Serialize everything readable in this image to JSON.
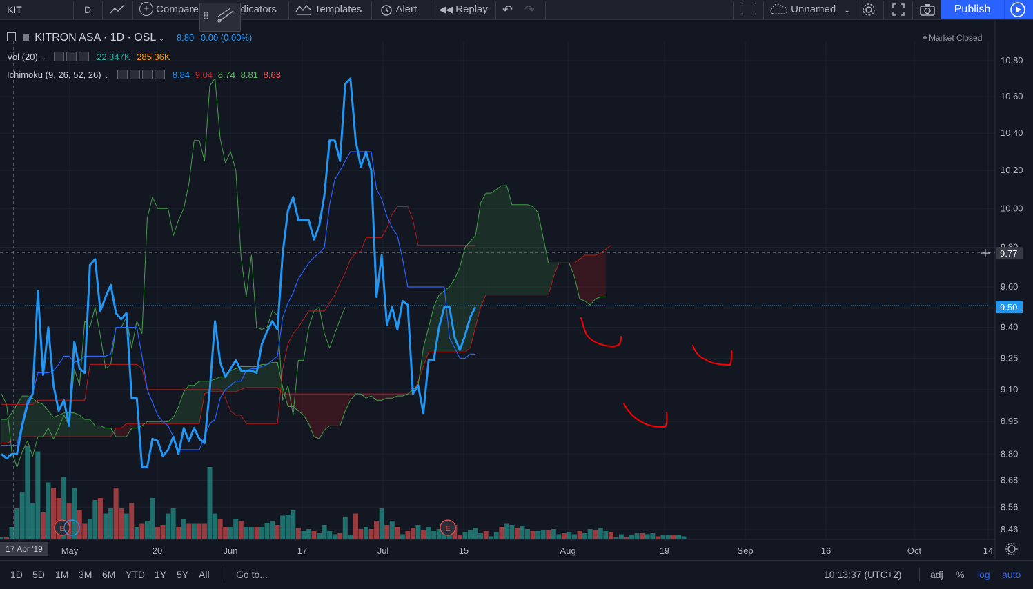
{
  "toolbar": {
    "symbol": "KIT",
    "interval": "D",
    "compare": "Compare",
    "indicators": "Indicators",
    "templates": "Templates",
    "alert": "Alert",
    "replay": "Replay",
    "layout_name": "Unnamed",
    "publish": "Publish"
  },
  "legend": {
    "title": "KITRON ASA · 1D · OSL",
    "price": "8.80",
    "change": "0.00 (0.00%)",
    "vol_label": "Vol (20)",
    "vol_value_1": "22.347K",
    "vol_value_2": "285.36K",
    "ichimoku_label": "Ichimoku (9, 26, 52, 26)",
    "ichi_values": [
      "8.84",
      "9.04",
      "8.74",
      "8.81",
      "8.63"
    ],
    "market_status": "Market Closed"
  },
  "crosshair_date": "17 Apr '19",
  "bottom": {
    "ranges": [
      "1D",
      "5D",
      "1M",
      "3M",
      "6M",
      "YTD",
      "1Y",
      "5Y",
      "All"
    ],
    "goto": "Go to...",
    "time": "10:13:37 (UTC+2)",
    "adj": "adj",
    "percent": "%",
    "log": "log",
    "auto": "auto"
  },
  "colors": {
    "background": "#131722",
    "price_line": "#2196f3",
    "tenkan": "#2962ff",
    "kijun": "#b71c1c",
    "chikou": "#43a047",
    "span_a": "#43a047",
    "span_b": "#b71c1c",
    "vol_up": "#26a69a",
    "vol_down": "#ef5350",
    "annotation": "#ff0000"
  },
  "chart_data": {
    "type": "line",
    "title": "KITRON ASA · 1D · OSL",
    "price_axis": {
      "ticks": [
        "10.80",
        "10.60",
        "10.40",
        "10.20",
        "10.00",
        "9.80",
        "9.60",
        "9.40",
        "9.25",
        "9.10",
        "8.95",
        "8.80",
        "8.68",
        "8.56",
        "8.46"
      ],
      "scale": "log",
      "ylim": [
        8.42,
        10.9
      ],
      "labels": [
        {
          "value": 9.77,
          "text": "9.77"
        },
        {
          "value": 9.5,
          "text": "9.50"
        }
      ]
    },
    "time_axis": {
      "ticks": [
        "May",
        "20",
        "Jun",
        "17",
        "Jul",
        "15",
        "Aug",
        "19",
        "Sep",
        "16",
        "Oct",
        "14"
      ],
      "first_index_label": "17 Apr '19"
    },
    "series": [
      {
        "name": "KITRON ASA",
        "values": [
          8.8,
          8.78,
          8.8,
          8.8,
          8.93,
          9.03,
          9.08,
          9.58,
          9.17,
          9.4,
          9.12,
          9.0,
          9.05,
          8.93,
          9.33,
          9.2,
          9.18,
          9.71,
          9.74,
          9.48,
          9.55,
          9.61,
          9.47,
          9.44,
          9.47,
          9.06,
          9.06,
          8.74,
          8.74,
          8.87,
          8.86,
          8.79,
          8.82,
          8.88,
          8.8,
          8.92,
          8.86,
          8.92,
          8.87,
          8.85,
          9.1,
          9.43,
          9.23,
          9.16,
          9.2,
          9.24,
          9.19,
          9.19,
          9.19,
          9.18,
          9.32,
          9.38,
          9.43,
          9.39,
          9.77,
          9.99,
          10.06,
          9.94,
          9.94,
          9.94,
          9.84,
          9.91,
          10.07,
          10.36,
          10.36,
          10.25,
          10.67,
          10.7,
          10.36,
          10.22,
          10.3,
          10.2,
          9.55,
          9.76,
          9.41,
          9.5,
          9.39,
          9.53,
          9.51,
          9.08,
          9.12,
          8.99,
          9.24,
          9.24,
          9.4,
          9.5,
          9.5,
          9.35,
          9.29,
          9.36,
          9.45,
          9.5
        ]
      },
      {
        "name": "Ichimoku Tenkan",
        "values": [
          8.84,
          8.84,
          8.84,
          8.84,
          8.95,
          9.05,
          9.08,
          9.18,
          9.18,
          9.18,
          9.19,
          9.22,
          9.26,
          9.26,
          9.23,
          9.24,
          9.26,
          9.26,
          9.26,
          9.26,
          9.26,
          9.27,
          9.4,
          9.4,
          9.4,
          9.4,
          9.4,
          9.26,
          9.1,
          9.04,
          8.98,
          8.95,
          8.93,
          8.88,
          8.82,
          8.82,
          8.82,
          8.82,
          8.82,
          8.88,
          8.94,
          8.96,
          9.06,
          9.1,
          9.12,
          9.14,
          9.14,
          9.19,
          9.2,
          9.2,
          9.21,
          9.22,
          9.24,
          9.26,
          9.45,
          9.52,
          9.57,
          9.64,
          9.68,
          9.72,
          9.75,
          9.77,
          9.8,
          10.02,
          10.15,
          10.2,
          10.25,
          10.3,
          10.3,
          10.3,
          10.3,
          10.3,
          10.1,
          10.05,
          9.96,
          9.9,
          9.86,
          9.74,
          9.6,
          9.6,
          9.6,
          9.6,
          9.6,
          9.6,
          9.6,
          9.6,
          9.35,
          9.3,
          9.25,
          9.25,
          9.27,
          9.27
        ]
      },
      {
        "name": "Ichimoku Kijun",
        "values": [
          9.03,
          9.03,
          9.03,
          9.03,
          9.03,
          9.03,
          9.03,
          9.05,
          9.05,
          9.05,
          9.05,
          9.05,
          9.05,
          9.05,
          9.05,
          9.05,
          9.05,
          9.22,
          9.22,
          9.22,
          9.22,
          9.22,
          9.22,
          9.22,
          9.22,
          9.22,
          9.22,
          9.2,
          9.1,
          9.1,
          9.1,
          9.1,
          9.1,
          9.1,
          9.1,
          9.1,
          9.1,
          9.1,
          9.1,
          9.1,
          9.1,
          9.1,
          9.1,
          9.06,
          9.0,
          8.98,
          8.98,
          8.94,
          8.94,
          8.94,
          8.94,
          8.94,
          8.94,
          8.94,
          9.2,
          9.32,
          9.37,
          9.4,
          9.44,
          9.48,
          9.48,
          9.48,
          9.48,
          9.52,
          9.56,
          9.62,
          9.67,
          9.74,
          9.77,
          9.78,
          9.85,
          9.85,
          9.85,
          9.85,
          9.9,
          9.97,
          10.01,
          10.01,
          10.01,
          9.94,
          9.81,
          9.81,
          9.81,
          9.81,
          9.81,
          9.81,
          9.81,
          9.81,
          9.81,
          9.81,
          9.81,
          9.81
        ]
      },
      {
        "name": "Ichimoku Chikou",
        "values": [
          9.08,
          9.03,
          8.81,
          8.74,
          8.81,
          8.86,
          8.79,
          8.88,
          8.88,
          8.92,
          8.87,
          8.92,
          8.98,
          8.93,
          9.2,
          9.12,
          9.43,
          9.4,
          9.5,
          9.36,
          9.2,
          9.22,
          9.4,
          9.4,
          9.45,
          9.3,
          9.43,
          9.37,
          9.95,
          10.06,
          10.0,
          10.0,
          10.0,
          9.86,
          9.94,
          10.0,
          10.13,
          10.36,
          10.36,
          10.25,
          10.66,
          10.7,
          10.37,
          10.24,
          10.3,
          10.2,
          9.75,
          9.55,
          9.76,
          9.4,
          9.39,
          9.4,
          9.48,
          9.46,
          9.05,
          9.12,
          8.98,
          9.24,
          9.24,
          9.4,
          9.48,
          9.5,
          9.37,
          9.3,
          9.37,
          9.44,
          9.5
        ]
      },
      {
        "name": "Ichimoku Span A",
        "values": [
          8.96,
          8.96,
          8.99,
          9.03,
          9.07,
          9.07,
          9.06,
          9.04,
          9.03,
          9.0,
          8.97,
          8.98,
          8.99,
          8.99,
          8.99,
          8.98,
          8.96,
          8.96,
          8.93,
          8.93,
          8.92,
          8.92,
          8.88,
          8.88,
          8.88,
          8.92,
          8.92,
          8.93,
          8.95,
          8.95,
          8.95,
          8.95,
          8.95,
          8.97,
          9.02,
          9.09,
          9.12,
          9.12,
          9.14,
          9.14,
          9.14,
          9.15,
          9.16,
          9.16,
          9.19,
          9.2,
          9.21,
          9.21,
          9.21,
          9.21,
          9.22,
          9.22,
          9.23,
          9.23,
          9.11,
          9.02,
          9.02,
          9.0,
          8.98,
          8.94,
          8.88,
          8.87,
          8.91,
          8.93,
          8.93,
          8.93,
          9.0,
          9.05,
          9.08,
          9.08,
          9.06,
          9.07,
          9.05,
          9.05,
          9.06,
          9.06,
          9.07,
          9.07,
          9.08,
          9.1,
          9.12,
          9.3,
          9.4,
          9.5,
          9.56,
          9.58,
          9.6,
          9.64,
          9.7,
          9.8,
          9.83,
          9.86,
          10.03,
          10.08,
          10.08,
          10.1,
          10.12,
          10.12,
          10.02,
          10.02,
          10.02,
          10.02,
          10.01,
          9.98,
          9.85,
          9.72,
          9.72,
          9.72,
          9.72,
          9.72,
          9.65,
          9.54,
          9.53,
          9.51,
          9.54,
          9.55,
          9.55
        ]
      },
      {
        "name": "Ichimoku Span B",
        "values": [
          8.85,
          8.85,
          8.86,
          8.86,
          8.88,
          8.88,
          8.88,
          8.88,
          8.88,
          8.88,
          8.88,
          8.88,
          8.88,
          8.88,
          8.88,
          8.88,
          8.88,
          8.88,
          8.88,
          8.88,
          8.88,
          8.88,
          8.92,
          8.92,
          8.94,
          8.94,
          8.94,
          8.94,
          8.94,
          8.94,
          8.94,
          8.94,
          8.94,
          8.94,
          8.94,
          8.94,
          8.94,
          8.94,
          8.94,
          9.08,
          9.09,
          9.09,
          9.09,
          9.09,
          9.09,
          9.09,
          9.1,
          9.11,
          9.11,
          9.11,
          9.11,
          9.11,
          9.11,
          9.11,
          9.08,
          9.08,
          9.08,
          9.08,
          9.08,
          9.08,
          9.08,
          9.08,
          9.08,
          9.08,
          9.08,
          9.08,
          9.08,
          9.08,
          9.08,
          9.08,
          9.08,
          9.08,
          9.08,
          9.08,
          9.08,
          9.08,
          9.08,
          9.08,
          9.08,
          9.08,
          9.14,
          9.21,
          9.28,
          9.28,
          9.28,
          9.28,
          9.28,
          9.28,
          9.28,
          9.28,
          9.3,
          9.4,
          9.5,
          9.56,
          9.56,
          9.56,
          9.56,
          9.56,
          9.56,
          9.56,
          9.56,
          9.56,
          9.56,
          9.56,
          9.56,
          9.56,
          9.65,
          9.72,
          9.72,
          9.72,
          9.72,
          9.74,
          9.76,
          9.76,
          9.76,
          9.77,
          9.79,
          9.81
        ]
      },
      {
        "name": "Vol (20)",
        "values": [
          2,
          2,
          12,
          30,
          46,
          90,
          35,
          85,
          26,
          55,
          50,
          40,
          60,
          35,
          50,
          28,
          15,
          20,
          38,
          40,
          25,
          30,
          50,
          30,
          25,
          35,
          12,
          15,
          18,
          40,
          12,
          14,
          25,
          30,
          12,
          20,
          15,
          15,
          15,
          15,
          70,
          25,
          20,
          12,
          12,
          20,
          18,
          12,
          12,
          12,
          12,
          16,
          18,
          14,
          23,
          24,
          28,
          11,
          8,
          10,
          8,
          6,
          14,
          8,
          5,
          6,
          22,
          4,
          25,
          10,
          12,
          10,
          18,
          30,
          14,
          18,
          12,
          5,
          8,
          11,
          14,
          9,
          12,
          8,
          10,
          12,
          13,
          14,
          4,
          7,
          9,
          11,
          6,
          8,
          3,
          7,
          12,
          15,
          14,
          11,
          13,
          10,
          8,
          8,
          9,
          9,
          10,
          5,
          6,
          7,
          5,
          8,
          6,
          10,
          9,
          11,
          8,
          7,
          2,
          5,
          2,
          4,
          6,
          6,
          5,
          6,
          3,
          4,
          4,
          4,
          4,
          3
        ]
      }
    ]
  }
}
